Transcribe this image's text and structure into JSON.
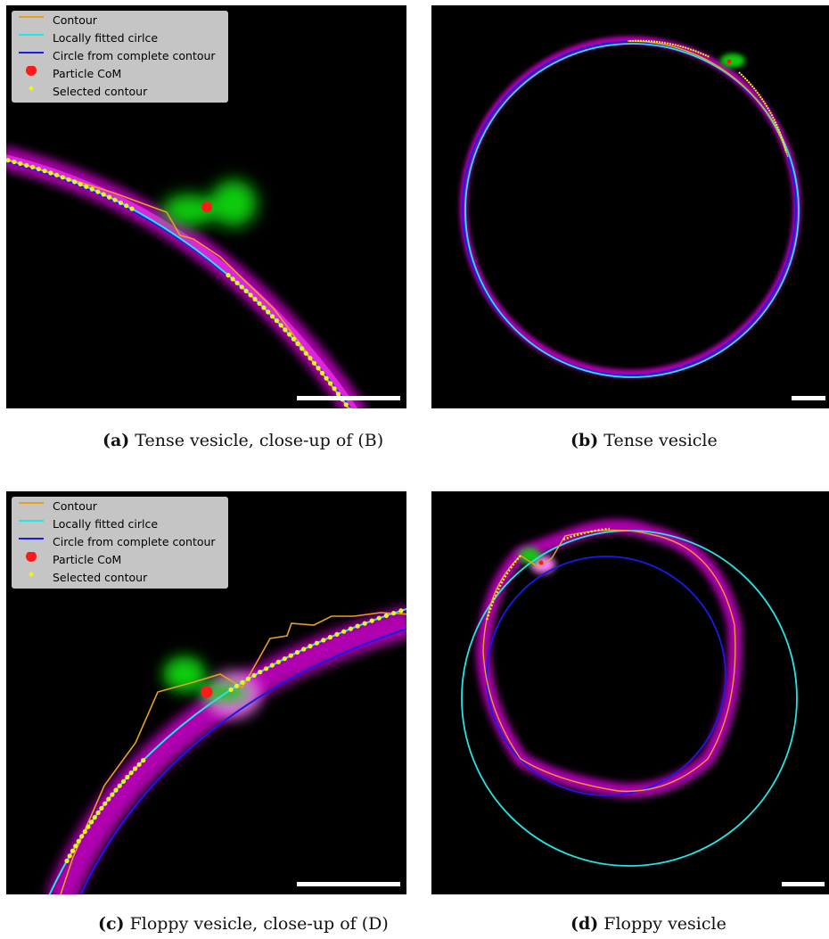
{
  "legend": {
    "contour": "Contour",
    "local_circle": "Locally fitted cirlce",
    "complete_circle": "Circle from complete contour",
    "particle": "Particle CoM",
    "selected": "Selected contour"
  },
  "colors": {
    "contour": "#e6a020",
    "local_circle": "#22e6e6",
    "complete_circle": "#1a1aee",
    "particle": "#ff1a1a",
    "selected": "#f2f21a",
    "membrane": "#c000c0",
    "particle_signal": "#00dd00"
  },
  "captions": {
    "a": {
      "label": "(a)",
      "text": "Tense vesicle, close-up of (B)"
    },
    "b": {
      "label": "(b)",
      "text": "Tense vesicle"
    },
    "c": {
      "label": "(c)",
      "text": "Floppy vesicle, close-up of (D)"
    },
    "d": {
      "label": "(d)",
      "text": "Floppy vesicle"
    }
  }
}
